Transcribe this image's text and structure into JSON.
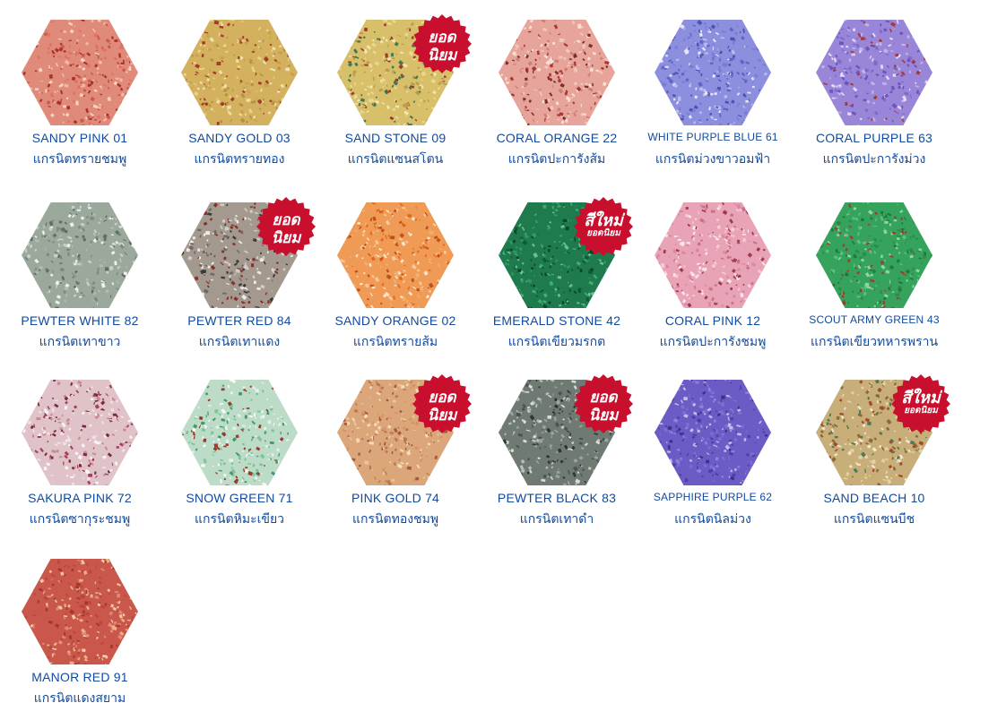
{
  "swatches": [
    {
      "name": "SANDY PINK 01",
      "thai": "แกรนิตทรายชมพู",
      "base": "#e08a7a",
      "colors": [
        "#f4b9a6",
        "#a8322c",
        "#e07365",
        "#f7d3c0",
        "#c85a50"
      ],
      "badge": null,
      "name_small": false
    },
    {
      "name": "SANDY GOLD 03",
      "thai": "แกรนิตทรายทอง",
      "base": "#d4b15f",
      "colors": [
        "#e8d28c",
        "#a33a2a",
        "#f0e2a8",
        "#b89040",
        "#c9a04c"
      ],
      "badge": null,
      "name_small": false
    },
    {
      "name": "SAND STONE 09",
      "thai": "แกรนิตแซนสโตน",
      "base": "#d8bf6a",
      "colors": [
        "#e9d98e",
        "#9c3a2b",
        "#3c7a55",
        "#f1e6ac",
        "#b99d4d"
      ],
      "badge": "popular",
      "name_small": false
    },
    {
      "name": "CORAL ORANGE 22",
      "thai": "แกรนิตปะการังส้ม",
      "base": "#e6a49a",
      "colors": [
        "#f3c6bd",
        "#a9372f",
        "#fbe0d8",
        "#cf7e74",
        "#7a3028"
      ],
      "badge": null,
      "name_small": false
    },
    {
      "name": "WHITE PURPLE BLUE 61",
      "thai": "แกรนิตม่วงขาวอมฟ้า",
      "base": "#8c8ede",
      "colors": [
        "#b9bcf0",
        "#6164c4",
        "#e5e6fa",
        "#7a7dd4",
        "#4d51b0"
      ],
      "badge": null,
      "name_small": true
    },
    {
      "name": "CORAL PURPLE 63",
      "thai": "แกรนิตปะการังม่วง",
      "base": "#9a86d8",
      "colors": [
        "#c0b4ec",
        "#a33a3a",
        "#7d6bc8",
        "#e3dcf7",
        "#6a55b8"
      ],
      "badge": null,
      "name_small": false
    },
    {
      "name": "PEWTER WHITE 82",
      "thai": "แกรนิตเทาขาว",
      "base": "#9aa99c",
      "colors": [
        "#c8d2c8",
        "#7b8a7d",
        "#eef1ec",
        "#5f6e62",
        "#b0bdb1"
      ],
      "badge": null,
      "name_small": false
    },
    {
      "name": "PEWTER RED 84",
      "thai": "แกรนิตเทาแดง",
      "base": "#a4998f",
      "colors": [
        "#d2ccc6",
        "#8a2f2a",
        "#3b3b3b",
        "#efece8",
        "#6d6a66"
      ],
      "badge": "popular",
      "name_small": false
    },
    {
      "name": "SANDY ORANGE 02",
      "thai": "แกรนิตทรายส้ม",
      "base": "#ef9a55",
      "colors": [
        "#f8c89a",
        "#e36a1c",
        "#fde5cc",
        "#c04e1a",
        "#f2b070"
      ],
      "badge": null,
      "name_small": false
    },
    {
      "name": "EMERALD STONE 42",
      "thai": "แกรนิตเขียวมรกต",
      "base": "#1f7a4e",
      "colors": [
        "#2f9b63",
        "#0f5a36",
        "#6bc28e",
        "#0a4428",
        "#3faf73"
      ],
      "badge": "new",
      "name_small": false
    },
    {
      "name": "CORAL PINK 12",
      "thai": "แกรนิตปะการังชมพู",
      "base": "#e9a3b6",
      "colors": [
        "#f6cbd6",
        "#c96f88",
        "#fbe6ec",
        "#9c3a4e",
        "#d98aa0"
      ],
      "badge": null,
      "name_small": false
    },
    {
      "name": "SCOUT ARMY GREEN 43",
      "thai": "แกรนิตเขียวทหารพราน",
      "base": "#35a35c",
      "colors": [
        "#5fc07e",
        "#1f7a40",
        "#8fd6a4",
        "#a33a2a",
        "#2a8c4c"
      ],
      "badge": null,
      "name_small": true
    },
    {
      "name": "SAKURA PINK 72",
      "thai": "แกรนิตซากุระชมพู",
      "base": "#e0c3c8",
      "colors": [
        "#f2e2e5",
        "#a3405a",
        "#c98a98",
        "#fbf3f4",
        "#7a2a3e"
      ],
      "badge": null,
      "name_small": false
    },
    {
      "name": "SNOW GREEN 71",
      "thai": "แกรนิตหิมะเขียว",
      "base": "#bcdcc7",
      "colors": [
        "#e2f1e7",
        "#3f9a6a",
        "#9a3a2a",
        "#f6fbf7",
        "#7cc49a"
      ],
      "badge": null,
      "name_small": false
    },
    {
      "name": "PINK GOLD 74",
      "thai": "แกรนิตทองชมพู",
      "base": "#dba67a",
      "colors": [
        "#ecc49c",
        "#b9774a",
        "#f5dcbf",
        "#a35a3a",
        "#d89266"
      ],
      "badge": "popular",
      "name_small": false
    },
    {
      "name": "PEWTER BLACK 83",
      "thai": "แกรนิตเทาดำ",
      "base": "#6f7a72",
      "colors": [
        "#9aa59c",
        "#2e3430",
        "#d8ddd8",
        "#4a534d",
        "#b9c2bb"
      ],
      "badge": "popular",
      "name_small": false
    },
    {
      "name": "SAPPHIRE PURPLE 62",
      "thai": "แกรนิตนิลม่วง",
      "base": "#6a5cc4",
      "colors": [
        "#8e82da",
        "#4a3ea8",
        "#c4bcef",
        "#3a2f8e",
        "#7b6fd0"
      ],
      "badge": null,
      "name_small": true
    },
    {
      "name": "SAND BEACH 10",
      "thai": "แกรนิตแซนบีช",
      "base": "#c8ae78",
      "colors": [
        "#e3d2a4",
        "#a34a2a",
        "#4a7a5a",
        "#f2e6c8",
        "#8a6a3a"
      ],
      "badge": "new",
      "name_small": false
    },
    {
      "name": "MANOR RED 91",
      "thai": "แกรนิตแดงสยาม",
      "base": "#c9574b",
      "colors": [
        "#e0867a",
        "#a8352c",
        "#f2c8a6",
        "#e8b47e",
        "#b8463a"
      ],
      "badge": null,
      "name_small": false
    }
  ],
  "badges": {
    "popular": {
      "line1": "ยอด",
      "line2": "นิยม",
      "color": "#c8102e"
    },
    "new": {
      "line1": "สีใหม่",
      "line2": "ยอดนิยม",
      "color": "#c8102e"
    }
  }
}
